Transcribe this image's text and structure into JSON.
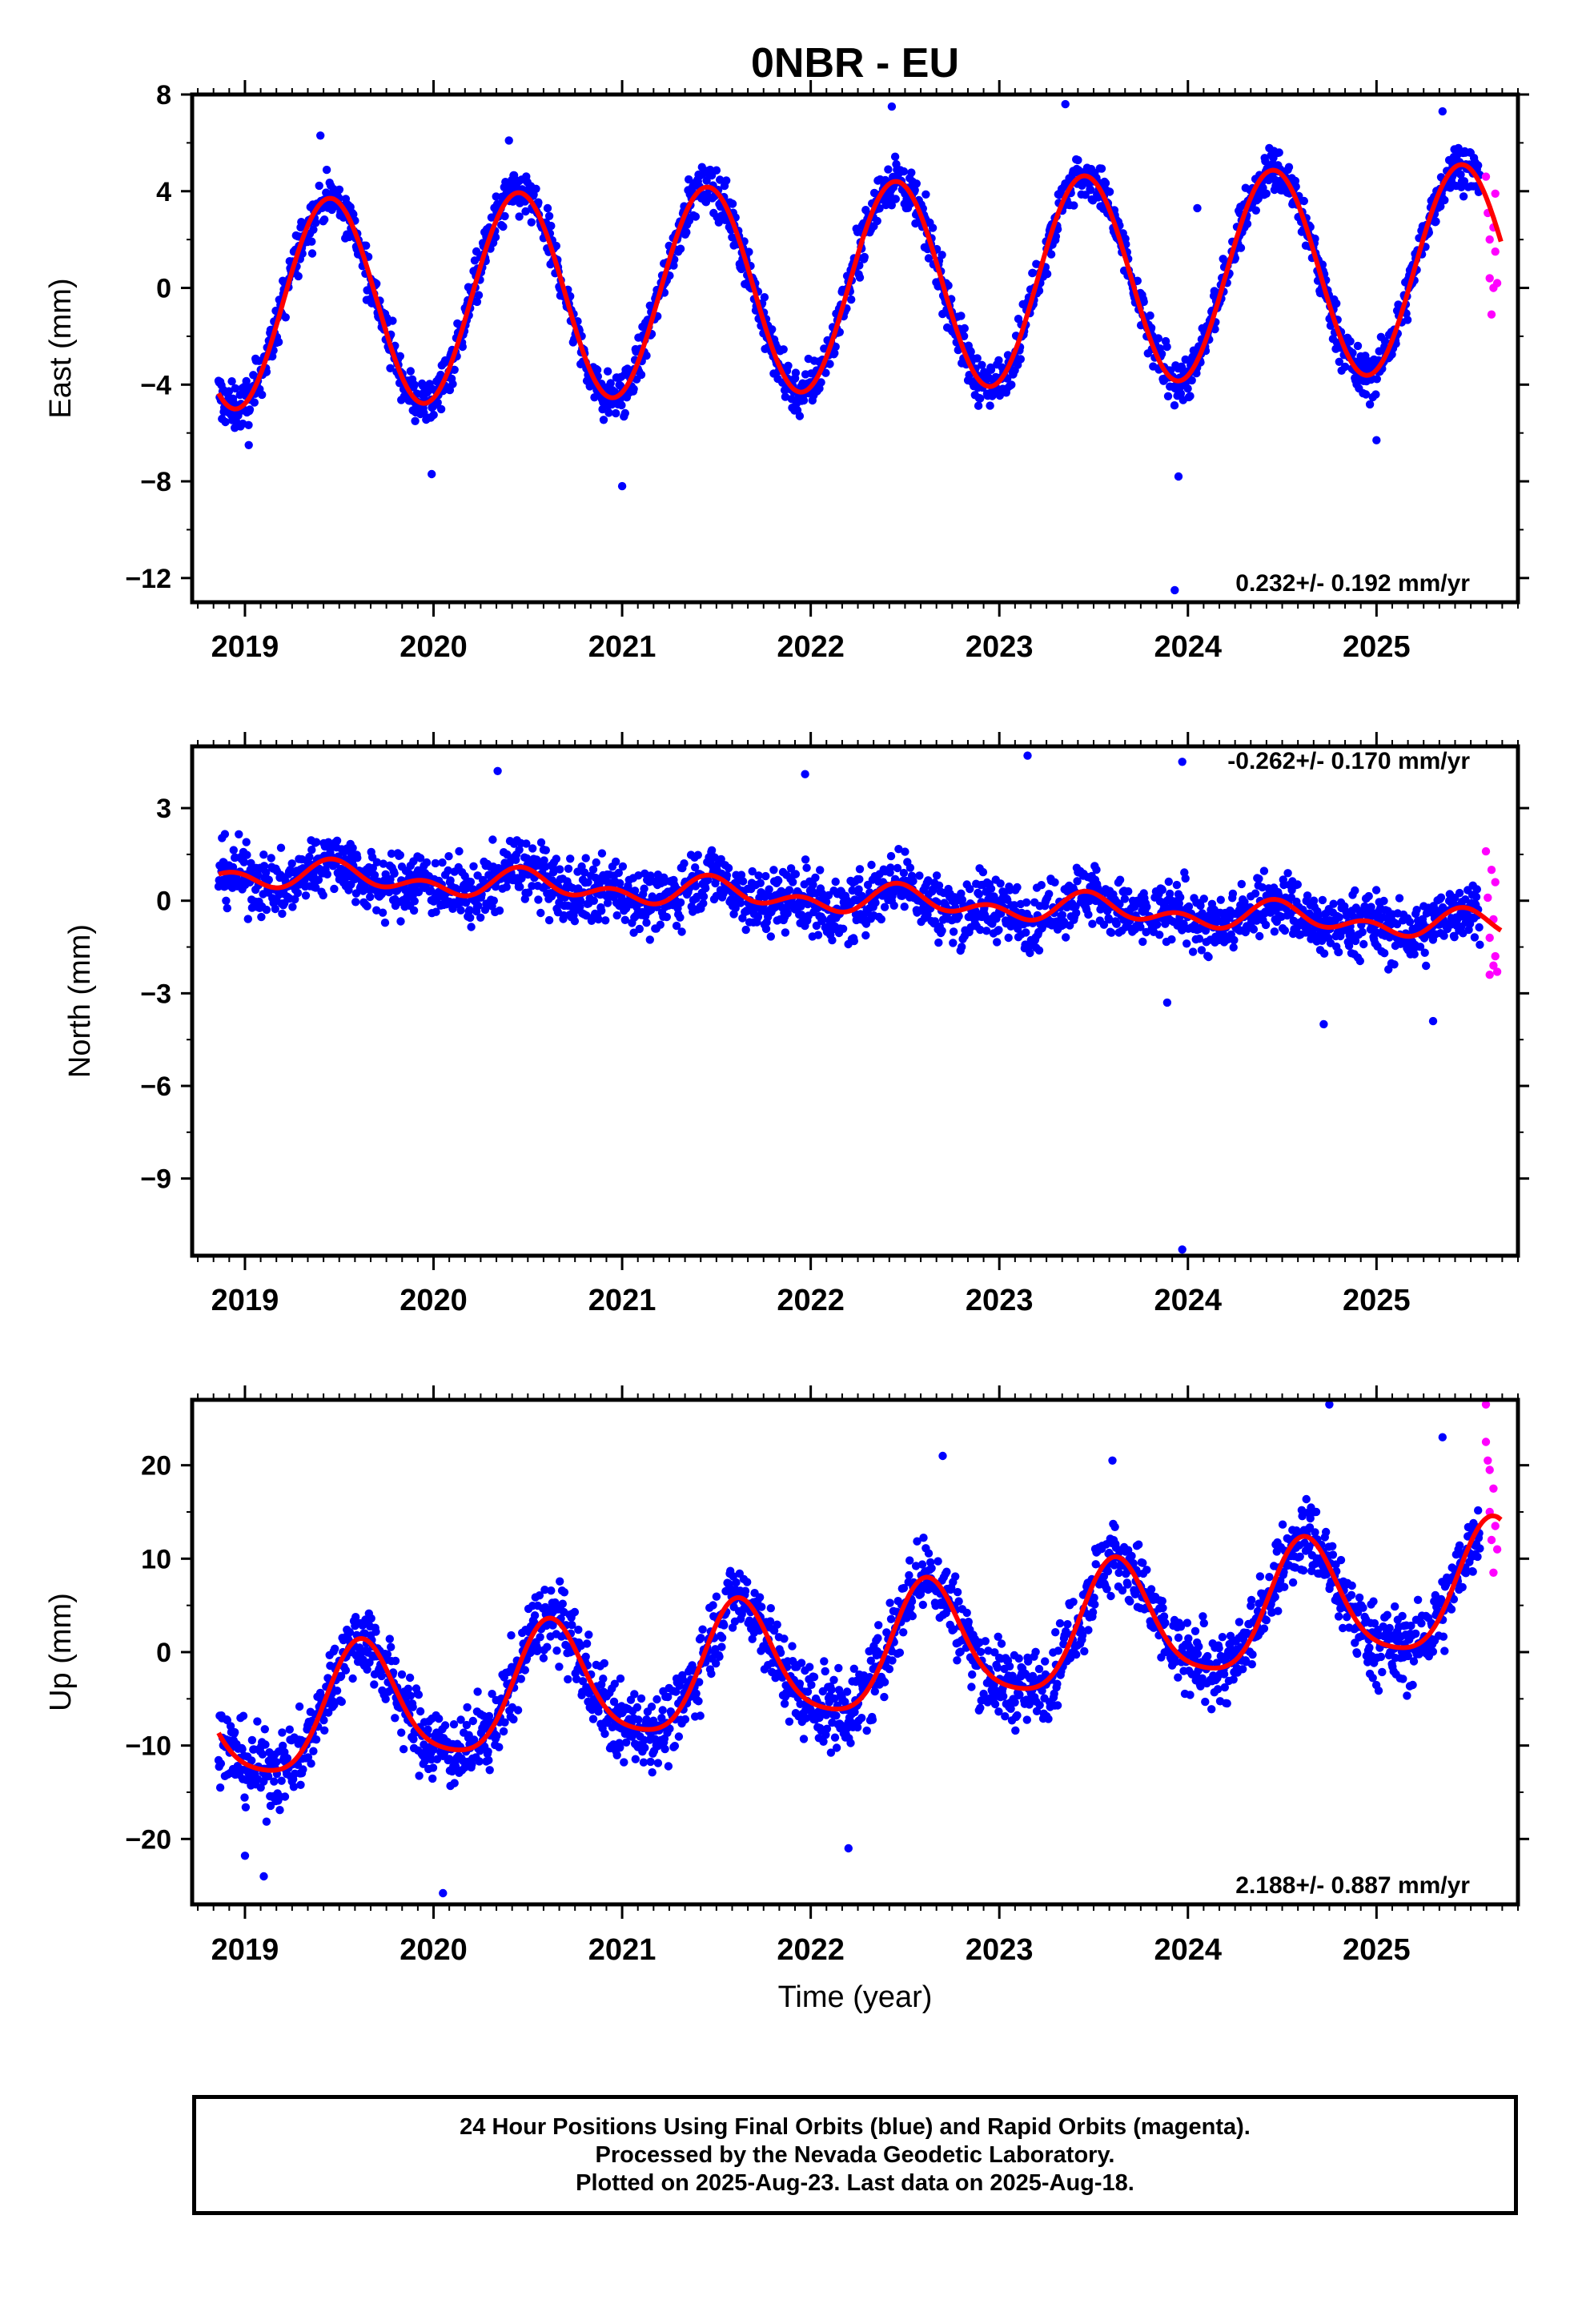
{
  "title": "0NBR - EU",
  "colors": {
    "final": "#0000ff",
    "rapid": "#ff00ff",
    "model": "#ff0000",
    "frame": "#000000"
  },
  "chart_data": [
    {
      "type": "scatter",
      "component": "east",
      "ylabel": "East (mm)",
      "ylim": [
        -13,
        8
      ],
      "yticks": [
        -12,
        -8,
        -4,
        0,
        4,
        8
      ],
      "xlim": [
        2018.72,
        2025.75
      ],
      "xticks": [
        2019,
        2020,
        2021,
        2022,
        2023,
        2024,
        2025
      ],
      "rate_label": "0.232+/- 0.192 mm/yr",
      "model": {
        "offset": 0.0,
        "slope": 0.232,
        "annual_amp": 4.3,
        "annual_peak": 0.45,
        "semi_amp": 0.0,
        "semi_peak": 0.0
      },
      "final_points": {
        "start": 2018.86,
        "end": 2025.55,
        "scatter": 0.9,
        "outliers": [
          [
            2019.02,
            -6.5
          ],
          [
            2019.99,
            -7.7
          ],
          [
            2021.0,
            -8.2
          ],
          [
            2023.95,
            -7.8
          ],
          [
            2023.93,
            -12.5
          ],
          [
            2025.0,
            -6.3
          ],
          [
            2019.4,
            6.3
          ],
          [
            2020.4,
            6.1
          ],
          [
            2022.43,
            7.5
          ],
          [
            2023.35,
            7.6
          ],
          [
            2025.35,
            7.3
          ],
          [
            2024.05,
            3.3
          ]
        ]
      },
      "rapid_points": [
        [
          2025.58,
          4.6
        ],
        [
          2025.59,
          3.1
        ],
        [
          2025.6,
          2.0
        ],
        [
          2025.6,
          0.4
        ],
        [
          2025.61,
          -1.1
        ],
        [
          2025.62,
          2.5
        ],
        [
          2025.62,
          0.0
        ],
        [
          2025.63,
          3.9
        ],
        [
          2025.63,
          1.5
        ],
        [
          2025.64,
          0.2
        ]
      ]
    },
    {
      "type": "scatter",
      "component": "north",
      "ylabel": "North (mm)",
      "ylim": [
        -11.5,
        5
      ],
      "yticks": [
        -9,
        -6,
        -3,
        0,
        3
      ],
      "xlim": [
        2018.72,
        2025.75
      ],
      "xticks": [
        2019,
        2020,
        2021,
        2022,
        2023,
        2024,
        2025
      ],
      "rate_label": "-0.262+/- 0.170 mm/yr",
      "model": {
        "offset": 0.1,
        "slope": -0.262,
        "annual_amp": 0.3,
        "annual_peak": 0.5,
        "semi_amp": 0.3,
        "semi_peak": 0.45
      },
      "final_points": {
        "start": 2018.86,
        "end": 2025.55,
        "scatter": 0.95,
        "outliers": [
          [
            2023.15,
            4.7
          ],
          [
            2023.97,
            4.5
          ],
          [
            2020.34,
            4.2
          ],
          [
            2021.97,
            4.1
          ],
          [
            2023.97,
            -11.3
          ],
          [
            2024.72,
            -4.0
          ],
          [
            2025.3,
            -3.9
          ],
          [
            2023.89,
            -3.3
          ]
        ]
      },
      "rapid_points": [
        [
          2025.58,
          1.6
        ],
        [
          2025.59,
          0.1
        ],
        [
          2025.6,
          -1.2
        ],
        [
          2025.6,
          -2.4
        ],
        [
          2025.61,
          1.0
        ],
        [
          2025.62,
          -0.6
        ],
        [
          2025.62,
          -2.1
        ],
        [
          2025.63,
          0.6
        ],
        [
          2025.63,
          -1.8
        ],
        [
          2025.64,
          -2.3
        ]
      ]
    },
    {
      "type": "scatter",
      "component": "up",
      "ylabel": "Up (mm)",
      "ylim": [
        -27,
        27
      ],
      "yticks": [
        -20,
        -10,
        0,
        10,
        20
      ],
      "xlim": [
        2018.72,
        2025.75
      ],
      "xticks": [
        2019,
        2020,
        2021,
        2022,
        2023,
        2024,
        2025
      ],
      "xlabel": "Time (year)",
      "rate_label": "2.188+/- 0.887 mm/yr",
      "model": {
        "offset": -1.0,
        "slope": 2.188,
        "annual_amp": 6.5,
        "annual_peak": 0.62,
        "semi_amp": 1.2,
        "semi_peak": 0.6
      },
      "final_points": {
        "start": 2018.86,
        "end": 2025.55,
        "scatter": 3.8,
        "outliers": [
          [
            2019.1,
            -24.0
          ],
          [
            2020.05,
            -25.8
          ],
          [
            2022.2,
            -21.0
          ],
          [
            2024.75,
            26.5
          ],
          [
            2025.35,
            23.0
          ],
          [
            2022.7,
            21.0
          ],
          [
            2023.6,
            20.5
          ],
          [
            2019.0,
            -21.8
          ]
        ]
      },
      "rapid_points": [
        [
          2025.58,
          26.5
        ],
        [
          2025.58,
          22.5
        ],
        [
          2025.59,
          20.5
        ],
        [
          2025.6,
          19.5
        ],
        [
          2025.6,
          15.0
        ],
        [
          2025.61,
          12.0
        ],
        [
          2025.62,
          8.5
        ],
        [
          2025.62,
          17.5
        ],
        [
          2025.63,
          13.5
        ],
        [
          2025.64,
          11.0
        ]
      ]
    }
  ],
  "footer": {
    "line1": "24 Hour Positions Using Final Orbits (blue) and Rapid Orbits (magenta).",
    "line2": "Processed by the Nevada Geodetic Laboratory.",
    "line3": "Plotted on 2025-Aug-23. Last data on 2025-Aug-18."
  }
}
